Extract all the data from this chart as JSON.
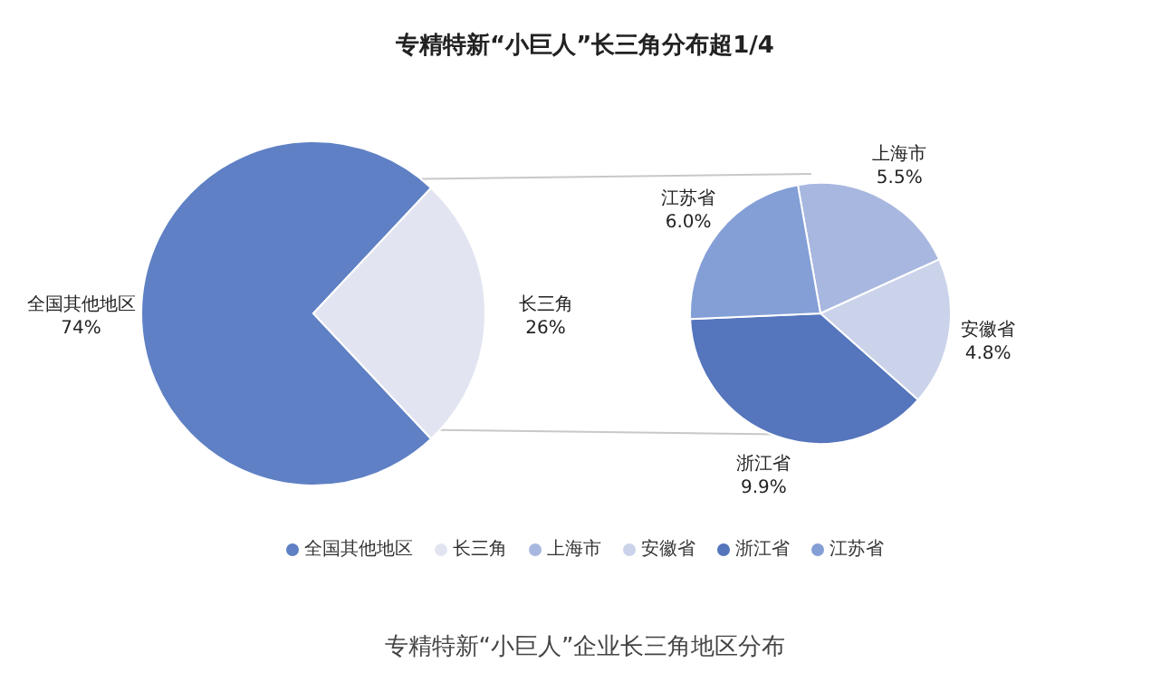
{
  "chart_data": [
    {
      "type": "pie",
      "title": "专精特新“小巨人”长三角分布超1/4",
      "categories": [
        "全国其他地区",
        "长三角"
      ],
      "values": [
        74,
        26
      ],
      "value_labels": [
        "74%",
        "26%"
      ],
      "colors": [
        "#5f80c4",
        "#e2e5f1"
      ],
      "legend": "bottom",
      "annotations": [
        "专精特新“小巨人”企业长三角地区分布"
      ]
    },
    {
      "type": "pie",
      "categories": [
        "上海市",
        "安徽省",
        "浙江省",
        "江苏省"
      ],
      "values": [
        5.5,
        4.8,
        9.9,
        6.0
      ],
      "value_labels": [
        "5.5%",
        "4.8%",
        "9.9%",
        "6.0%"
      ],
      "colors": [
        "#a8b7df",
        "#cbd3eb",
        "#5575bc",
        "#849fd6"
      ],
      "legend": "bottom"
    }
  ]
}
